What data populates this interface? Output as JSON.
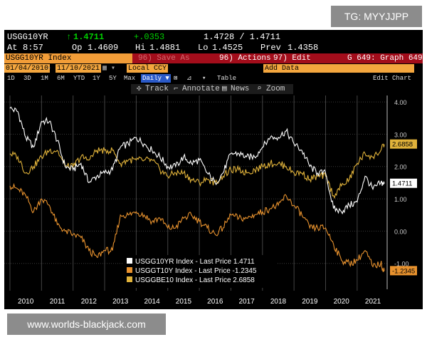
{
  "watermarks": {
    "top": "TG: MYYJJPP",
    "bottom": "www.worlds-blackjack.com"
  },
  "header": {
    "ticker": "USGG10YR",
    "last_arrow": "↑",
    "last": "1.4711",
    "change": "+.0353",
    "bid_ask": "1.4728 / 1.4711",
    "time_label": "At",
    "time": "8:57",
    "open_label": "Op",
    "open": "1.4609",
    "high_label": "Hi",
    "high": "1.4881",
    "low_label": "Lo",
    "low": "1.4525",
    "prev_label": "Prev",
    "prev": "1.4358"
  },
  "function_bar": {
    "security": "USGG10YR Index",
    "save_label": "96) Save As",
    "actions": "96) Actions",
    "edit": "97) Edit",
    "graph": "G 649: Graph 649"
  },
  "date_bar": {
    "start": "01/04/2010",
    "end": "11/10/2021",
    "currency": "Local CCY",
    "add_data": "Add Data",
    "table": "Table",
    "edit_chart": "Edit Chart"
  },
  "periods": [
    "1D",
    "3D",
    "1M",
    "6M",
    "YTD",
    "1Y",
    "5Y",
    "Max"
  ],
  "frequency": "Daily ▼",
  "tools": {
    "track": "Track",
    "annotate": "Annotate",
    "news": "News",
    "zoom": "Zoom"
  },
  "colors": {
    "white_series": "#ffffff",
    "orange_series": "#e8922e",
    "yellow_series": "#e0b23a",
    "amber": "#f29d38",
    "red_bar": "#a30d1b"
  },
  "chart_data": {
    "type": "line",
    "title": "USGG10YR Index",
    "x": [
      2010.0,
      2010.25,
      2010.5,
      2010.75,
      2011.0,
      2011.25,
      2011.5,
      2011.75,
      2012.0,
      2012.25,
      2012.5,
      2012.75,
      2013.0,
      2013.25,
      2013.5,
      2013.75,
      2014.0,
      2014.25,
      2014.5,
      2014.75,
      2015.0,
      2015.25,
      2015.5,
      2015.75,
      2016.0,
      2016.25,
      2016.5,
      2016.75,
      2017.0,
      2017.25,
      2017.5,
      2017.75,
      2018.0,
      2018.25,
      2018.5,
      2018.75,
      2019.0,
      2019.25,
      2019.5,
      2019.75,
      2020.0,
      2020.25,
      2020.5,
      2020.75,
      2021.0,
      2021.25,
      2021.5,
      2021.75,
      2021.86
    ],
    "series": [
      {
        "name": "USGG10YR Index",
        "label": "USGG10YR Index - Last Price 1.4711",
        "last": "1.4711",
        "values": [
          3.8,
          3.7,
          2.9,
          2.6,
          3.4,
          3.4,
          2.8,
          2.0,
          1.9,
          2.1,
          1.5,
          1.7,
          1.8,
          1.9,
          2.6,
          2.7,
          2.9,
          2.7,
          2.5,
          2.3,
          2.0,
          2.0,
          2.3,
          2.1,
          2.2,
          1.8,
          1.5,
          1.8,
          2.4,
          2.4,
          2.3,
          2.3,
          2.6,
          2.9,
          2.9,
          3.1,
          2.7,
          2.5,
          2.0,
          1.8,
          1.8,
          0.7,
          0.6,
          0.8,
          0.9,
          1.7,
          1.3,
          1.5,
          1.4711
        ]
      },
      {
        "name": "USGGT10Y Index",
        "label": "USGGT10Y Index - Last Price -1.2345",
        "last": "-1.2345",
        "values": [
          1.4,
          1.3,
          1.1,
          0.6,
          1.0,
          0.8,
          0.2,
          0.0,
          -0.1,
          -0.2,
          -0.6,
          -0.8,
          -0.6,
          -0.6,
          0.5,
          0.5,
          0.6,
          0.5,
          0.3,
          0.4,
          0.1,
          0.1,
          0.4,
          0.5,
          0.3,
          0.1,
          -0.1,
          0.1,
          0.5,
          0.4,
          0.4,
          0.5,
          0.6,
          0.7,
          0.8,
          1.1,
          0.8,
          0.5,
          0.1,
          0.1,
          0.1,
          -0.4,
          -0.9,
          -1.0,
          -0.9,
          -0.6,
          -1.1,
          -1.0,
          -1.2345
        ]
      },
      {
        "name": "USGGBE10 Index",
        "label": "USGGBE10 Index - Last Price 2.6858",
        "last": "2.6858",
        "values": [
          2.4,
          2.3,
          1.8,
          2.0,
          2.3,
          2.5,
          2.5,
          2.0,
          2.0,
          2.3,
          2.2,
          2.5,
          2.5,
          2.5,
          2.1,
          2.2,
          2.2,
          2.2,
          2.2,
          1.9,
          1.7,
          1.8,
          1.8,
          1.6,
          1.5,
          1.6,
          1.5,
          1.7,
          1.9,
          1.9,
          1.8,
          1.9,
          2.0,
          2.1,
          2.1,
          2.0,
          1.8,
          1.8,
          1.6,
          1.7,
          1.7,
          1.1,
          1.4,
          1.6,
          2.1,
          2.4,
          2.3,
          2.5,
          2.6858
        ]
      }
    ],
    "y_ticks": [
      4.0,
      3.0,
      2.0,
      1.0,
      0.0,
      -1.0
    ],
    "y_tick_labels": [
      "4.00",
      "3.00",
      "2.00",
      "1.00",
      "0.00",
      "-1.00"
    ],
    "x_ticks": [
      "2010",
      "2011",
      "2012",
      "2013",
      "2014",
      "2015",
      "2016",
      "2017",
      "2018",
      "2019",
      "2020",
      "2021"
    ],
    "ylim": [
      -1.8,
      4.2
    ],
    "xlim": [
      2009.82,
      2021.95
    ],
    "legend_position": "bottom-center"
  }
}
